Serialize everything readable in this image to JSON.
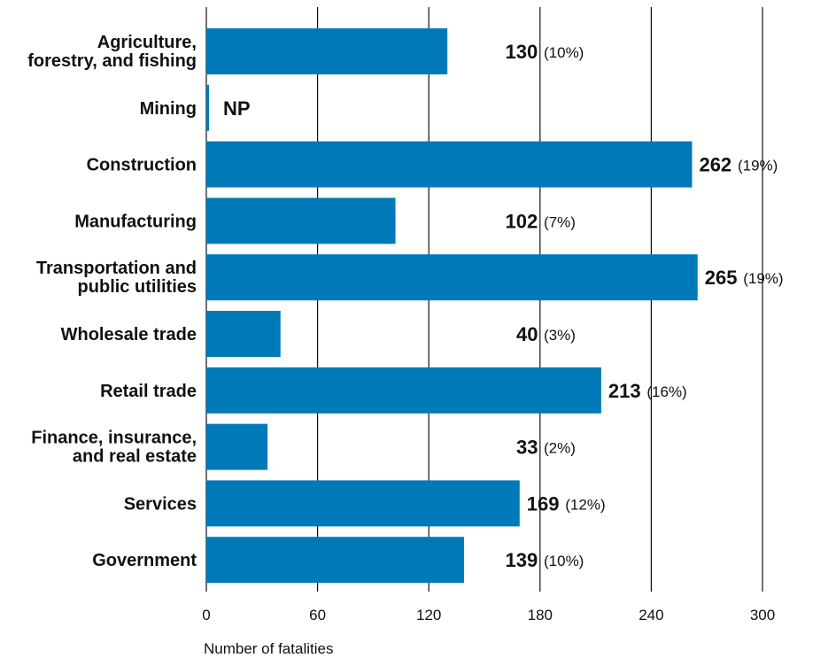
{
  "chart_data": {
    "type": "bar",
    "orientation": "horizontal",
    "categories": [
      [
        "Agriculture,",
        "forestry, and fishing"
      ],
      [
        "Mining"
      ],
      [
        "Construction"
      ],
      [
        "Manufacturing"
      ],
      [
        "Transportation and",
        "public utilities"
      ],
      [
        "Wholesale trade"
      ],
      [
        "Retail trade"
      ],
      [
        "Finance, insurance,",
        "and real estate"
      ],
      [
        "Services"
      ],
      [
        "Government"
      ]
    ],
    "values": [
      130,
      null,
      262,
      102,
      265,
      40,
      213,
      33,
      169,
      139
    ],
    "value_labels": [
      "130",
      "NP",
      "262",
      "102",
      "265",
      "40",
      "213",
      "33",
      "169",
      "139"
    ],
    "percent_labels": [
      "(10%)",
      "",
      "(19%)",
      "(7%)",
      "(19%)",
      "(3%)",
      "(16%)",
      "(2%)",
      "(12%)",
      "(10%)"
    ],
    "xlabel": "Number of fatalities",
    "xlim": [
      0,
      300
    ],
    "xticks": [
      0,
      60,
      120,
      180,
      240,
      300
    ],
    "grid": "vertical",
    "bar_color": "#0079b8"
  }
}
